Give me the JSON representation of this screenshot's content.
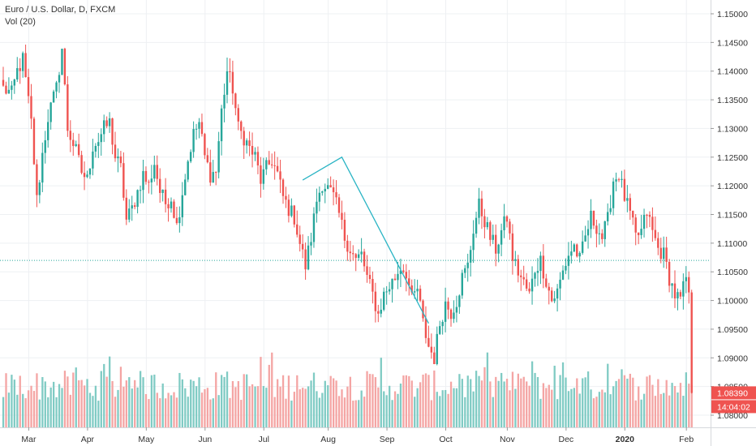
{
  "legend": {
    "symbol_line": "Euro / U.S. Dollar, D, FXCM",
    "volume_line": "Vol (20)"
  },
  "colors": {
    "up": "#26a69a",
    "down": "#ef5350",
    "vol_up": "#80cbc4",
    "vol_down": "#f4a5a4",
    "grid": "#eef0f3",
    "price_line": "#26a69a",
    "drawing": "#2ab4c4",
    "badge": "#ef5350"
  },
  "chart_data": {
    "type": "candlestick",
    "ylim": [
      1.0775,
      1.1525
    ],
    "y_ticks": [
      "1.15000",
      "1.14500",
      "1.14000",
      "1.13500",
      "1.13000",
      "1.12500",
      "1.12000",
      "1.11500",
      "1.11000",
      "1.10500",
      "1.10000",
      "1.09500",
      "1.09000",
      "1.08500",
      "1.08000"
    ],
    "x_labels": [
      {
        "label": "Mar",
        "bold": false
      },
      {
        "label": "Apr",
        "bold": false
      },
      {
        "label": "May",
        "bold": false
      },
      {
        "label": "Jun",
        "bold": false
      },
      {
        "label": "Jul",
        "bold": false
      },
      {
        "label": "Aug",
        "bold": false
      },
      {
        "label": "Sep",
        "bold": false
      },
      {
        "label": "Oct",
        "bold": false
      },
      {
        "label": "Nov",
        "bold": false
      },
      {
        "label": "Dec",
        "bold": false
      },
      {
        "label": "2020",
        "bold": true
      },
      {
        "label": "Feb",
        "bold": false
      }
    ],
    "x_label_bars": [
      1,
      22,
      43,
      64,
      85,
      108,
      129,
      150,
      172,
      193,
      214,
      236
    ],
    "total_bars": 247,
    "anchors": [
      [
        0,
        1.137
      ],
      [
        3,
        1.136
      ],
      [
        5,
        1.14
      ],
      [
        7,
        1.142
      ],
      [
        10,
        1.131
      ],
      [
        12,
        1.1175
      ],
      [
        14,
        1.1255
      ],
      [
        16,
        1.132
      ],
      [
        19,
        1.137
      ],
      [
        21,
        1.144
      ],
      [
        23,
        1.13
      ],
      [
        26,
        1.126
      ],
      [
        28,
        1.1225
      ],
      [
        30,
        1.121
      ],
      [
        32,
        1.127
      ],
      [
        34,
        1.128
      ],
      [
        36,
        1.13
      ],
      [
        38,
        1.131
      ],
      [
        40,
        1.125
      ],
      [
        42,
        1.123
      ],
      [
        44,
        1.114
      ],
      [
        46,
        1.116
      ],
      [
        48,
        1.119
      ],
      [
        50,
        1.122
      ],
      [
        52,
        1.12
      ],
      [
        54,
        1.124
      ],
      [
        56,
        1.119
      ],
      [
        58,
        1.117
      ],
      [
        60,
        1.118
      ],
      [
        62,
        1.113
      ],
      [
        64,
        1.119
      ],
      [
        66,
        1.1245
      ],
      [
        68,
        1.129
      ],
      [
        70,
        1.131
      ],
      [
        72,
        1.125
      ],
      [
        74,
        1.122
      ],
      [
        76,
        1.1225
      ],
      [
        78,
        1.133
      ],
      [
        80,
        1.14
      ],
      [
        82,
        1.137
      ],
      [
        84,
        1.13
      ],
      [
        86,
        1.1285
      ],
      [
        88,
        1.1265
      ],
      [
        90,
        1.125
      ],
      [
        92,
        1.121
      ],
      [
        94,
        1.123
      ],
      [
        96,
        1.1245
      ],
      [
        98,
        1.122
      ],
      [
        100,
        1.118
      ],
      [
        102,
        1.116
      ],
      [
        104,
        1.1145
      ],
      [
        106,
        1.11
      ],
      [
        108,
        1.106
      ],
      [
        110,
        1.111
      ],
      [
        112,
        1.1175
      ],
      [
        114,
        1.1205
      ],
      [
        116,
        1.1195
      ],
      [
        118,
        1.118
      ],
      [
        120,
        1.115
      ],
      [
        122,
        1.111
      ],
      [
        124,
        1.109
      ],
      [
        126,
        1.107
      ],
      [
        128,
        1.108
      ],
      [
        130,
        1.104
      ],
      [
        132,
        1.101
      ],
      [
        134,
        1.0975
      ],
      [
        136,
        1.101
      ],
      [
        138,
        1.1025
      ],
      [
        140,
        1.104
      ],
      [
        142,
        1.106
      ],
      [
        144,
        1.105
      ],
      [
        146,
        1.1
      ],
      [
        148,
        1.102
      ],
      [
        150,
        1.096
      ],
      [
        152,
        1.092
      ],
      [
        154,
        1.09
      ],
      [
        156,
        1.096
      ],
      [
        158,
        1.0995
      ],
      [
        160,
        1.098
      ],
      [
        162,
        1.1
      ],
      [
        164,
        1.104
      ],
      [
        166,
        1.106
      ],
      [
        168,
        1.1125
      ],
      [
        170,
        1.1165
      ],
      [
        172,
        1.114
      ],
      [
        174,
        1.111
      ],
      [
        176,
        1.109
      ],
      [
        178,
        1.112
      ],
      [
        180,
        1.1145
      ],
      [
        182,
        1.1075
      ],
      [
        184,
        1.105
      ],
      [
        186,
        1.103
      ],
      [
        188,
        1.101
      ],
      [
        190,
        1.1055
      ],
      [
        192,
        1.107
      ],
      [
        194,
        1.1035
      ],
      [
        196,
        1.1
      ],
      [
        198,
        1.1015
      ],
      [
        200,
        1.105
      ],
      [
        202,
        1.108
      ],
      [
        204,
        1.1095
      ],
      [
        206,
        1.107
      ],
      [
        208,
        1.111
      ],
      [
        210,
        1.1145
      ],
      [
        212,
        1.113
      ],
      [
        214,
        1.111
      ],
      [
        216,
        1.114
      ],
      [
        218,
        1.121
      ],
      [
        220,
        1.122
      ],
      [
        222,
        1.118
      ],
      [
        224,
        1.115
      ],
      [
        226,
        1.111
      ],
      [
        228,
        1.112
      ],
      [
        230,
        1.1155
      ],
      [
        232,
        1.112
      ],
      [
        234,
        1.109
      ],
      [
        236,
        1.108
      ],
      [
        238,
        1.104
      ],
      [
        240,
        1.101
      ],
      [
        242,
        1.1
      ],
      [
        244,
        1.104
      ],
      [
        246,
        1.0965
      ],
      [
        248,
        1.093
      ],
      [
        250,
        1.0895
      ],
      [
        252,
        1.0865
      ]
    ],
    "volume_ylim": [
      0,
      4000
    ],
    "volume_note": "",
    "current_price": "1.08390",
    "current_price_value": 1.0839,
    "countdown": "14:04:02",
    "horizontal_line": 1.107,
    "trend_drawing": [
      {
        "bar": 107,
        "price": 1.121
      },
      {
        "bar": 121,
        "price": 1.125
      },
      {
        "bar": 152,
        "price": 1.096
      }
    ]
  }
}
